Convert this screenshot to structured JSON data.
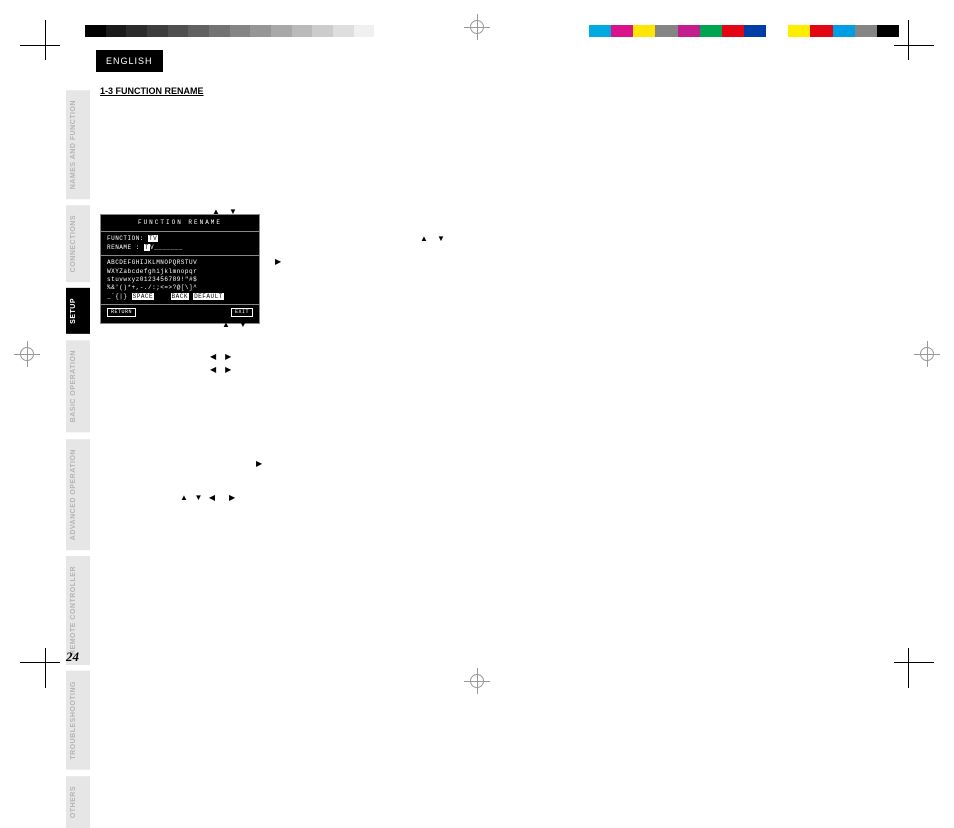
{
  "language_tab": "ENGLISH",
  "section_heading": "1-3  FUNCTION RENAME",
  "side_tabs": [
    {
      "label": "NAMES AND\nFUNCTION",
      "active": false
    },
    {
      "label": "CONNECTIONS",
      "active": false
    },
    {
      "label": "SETUP",
      "active": true
    },
    {
      "label": "BASIC\nOPERATION",
      "active": false
    },
    {
      "label": "ADVANCED\nOPERATION",
      "active": false
    },
    {
      "label": "REMOTE\nCONTROLLER",
      "active": false
    },
    {
      "label": "TROUBLESHOOTING",
      "active": false
    },
    {
      "label": "OTHERS",
      "active": false
    }
  ],
  "osd": {
    "title": "FUNCTION RENAME",
    "line1_label": "FUNCTION:",
    "line1_value": "TV",
    "line2_label": "RENAME  :",
    "line2_value": "TV_______",
    "grid1": "ABCDEFGHIJKLMNOPQRSTUV",
    "grid2": "WXYZabcdefghijklmnopqr",
    "grid3": "stuvwxyz0123456789!\"#$",
    "grid4": "%&'()*+,-./:;<=>?@[\\]^",
    "grid5_a": "_`{|}",
    "grid5_space": "SPACE",
    "grid5_back": "BACK",
    "grid5_default": "DEFAULT",
    "btn_return": "RETURN",
    "btn_exit": "EXIT"
  },
  "gray_swatches": [
    "#000000",
    "#1a1a1a",
    "#2b2b2b",
    "#3d3d3d",
    "#4f4f4f",
    "#616161",
    "#737373",
    "#858585",
    "#969696",
    "#a8a8a8",
    "#bababa",
    "#cccccc",
    "#dedede",
    "#f0f0f0",
    "#ffffff"
  ],
  "color_swatches": [
    "#00a9e0",
    "#d9138a",
    "#ffe600",
    "#858585",
    "#c31e8d",
    "#00a551",
    "#e30613",
    "#003da5",
    "#ffffff",
    "#ffed00",
    "#e30613",
    "#009fe3",
    "#858585",
    "#000000"
  ],
  "arrows": {
    "up": "▲",
    "down": "▼",
    "left": "◀",
    "right": "▶"
  },
  "page_number": "24"
}
